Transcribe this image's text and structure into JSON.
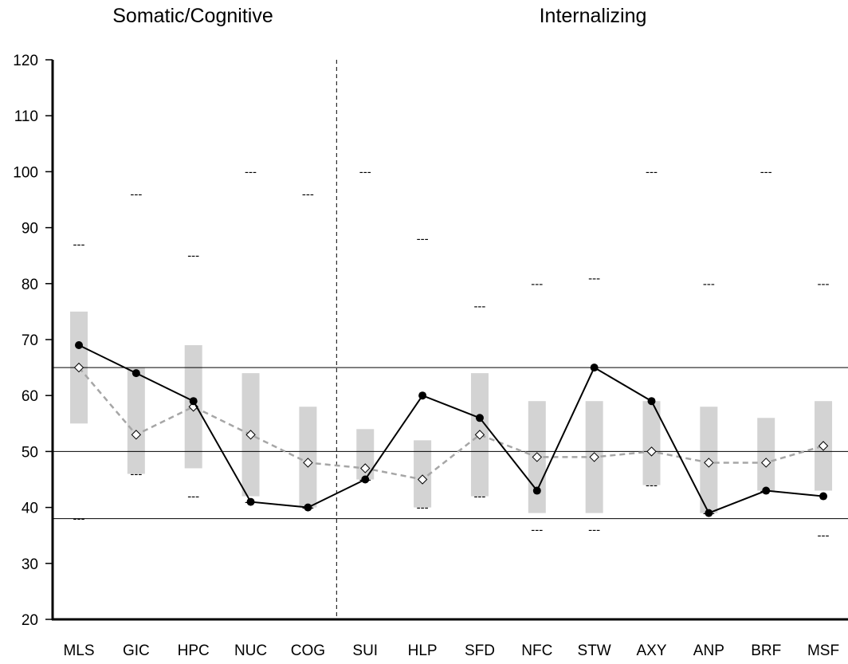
{
  "chart_data": {
    "type": "line",
    "panel_titles": [
      "Somatic/Cognitive",
      "Internalizing"
    ],
    "categories": [
      "MLS",
      "GIC",
      "HPC",
      "NUC",
      "COG",
      "SUI",
      "HLP",
      "SFD",
      "NFC",
      "STW",
      "AXY",
      "ANP",
      "BRF",
      "MSF"
    ],
    "ylim": [
      20,
      120
    ],
    "yticks": [
      20,
      30,
      40,
      50,
      60,
      70,
      80,
      90,
      100,
      110,
      120
    ],
    "reference_lines": [
      65,
      50,
      38
    ],
    "divider_after_index": 4,
    "series": [
      {
        "values": [
          69,
          64,
          59,
          41,
          40,
          45,
          60,
          56,
          43,
          65,
          59,
          39,
          43,
          42
        ],
        "style": "solid-black-filled-circle"
      },
      {
        "values": [
          65,
          53,
          58,
          53,
          48,
          47,
          45,
          53,
          49,
          49,
          50,
          48,
          48,
          51
        ],
        "style": "dashed-gray-open-diamond"
      }
    ],
    "ranges": [
      [
        55,
        75
      ],
      [
        46,
        65
      ],
      [
        47,
        69
      ],
      [
        42,
        64
      ],
      [
        40,
        58
      ],
      [
        45,
        54
      ],
      [
        40,
        52
      ],
      [
        42,
        64
      ],
      [
        39,
        59
      ],
      [
        39,
        59
      ],
      [
        44,
        59
      ],
      [
        39,
        58
      ],
      [
        43,
        56
      ],
      [
        43,
        59
      ]
    ],
    "upper_marks": [
      87,
      96,
      85,
      100,
      96,
      100,
      88,
      76,
      80,
      81,
      100,
      80,
      100,
      80
    ],
    "lower_marks": [
      38,
      46,
      42,
      41,
      40,
      45,
      40,
      42,
      36,
      36,
      44,
      39,
      43,
      35
    ],
    "mark_text": "---",
    "grid": false,
    "legend": "none"
  }
}
